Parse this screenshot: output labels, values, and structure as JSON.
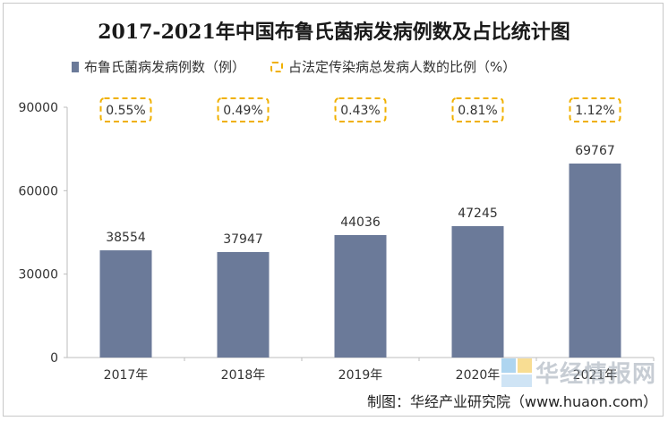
{
  "title": "2017-2021年中国布鲁氏菌病发病例数及占比统计图",
  "legend": {
    "bar_label": "布鲁氏菌病发病例数（例）",
    "ratio_label": "占法定传染病总发病人数的比例（%）"
  },
  "footer": "制图：华经产业研究院（www.huaon.com）",
  "watermark": "华经情报网",
  "colors": {
    "bar": "#6b7a99",
    "ratio_border": "#f0b000"
  },
  "chart_data": {
    "type": "bar",
    "categories": [
      "2017年",
      "2018年",
      "2019年",
      "2020年",
      "2021年"
    ],
    "series": [
      {
        "name": "布鲁氏菌病发病例数（例）",
        "values": [
          38554,
          37947,
          44036,
          47245,
          69767
        ]
      },
      {
        "name": "占法定传染病总发病人数的比例（%）",
        "labels": [
          "0.55%",
          "0.49%",
          "0.43%",
          "0.81%",
          "1.12%"
        ]
      }
    ],
    "ylim": [
      0,
      90000
    ],
    "yticks": [
      "0",
      "30000",
      "60000",
      "90000"
    ],
    "xlabel": "",
    "ylabel": "",
    "grid": false
  }
}
